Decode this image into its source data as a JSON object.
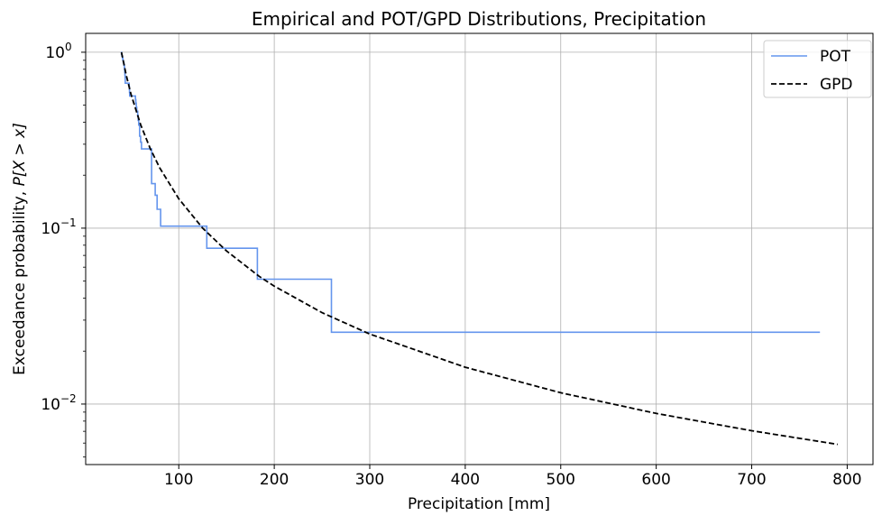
{
  "chart_data": {
    "type": "line",
    "title": "Empirical and POT/GPD Distributions, Precipitation",
    "xlabel": "Precipitation [mm]",
    "ylabel_prefix": "Exceedance probability, ",
    "ylabel_math": "P[X > x]",
    "xlim": [
      2.5,
      827
    ],
    "ylim": [
      0.00453,
      1.28
    ],
    "yscale": "log",
    "grid": true,
    "legend_position": "top-right",
    "xticks": [
      100,
      200,
      300,
      400,
      500,
      600,
      700,
      800
    ],
    "xtick_labels": [
      "100",
      "200",
      "300",
      "400",
      "500",
      "600",
      "700",
      "800"
    ],
    "yticks": [
      1,
      0.1,
      0.01
    ],
    "ytick_labels": [
      {
        "base": "10",
        "exp": "0"
      },
      {
        "base": "10",
        "exp": "−1"
      },
      {
        "base": "10",
        "exp": "−2"
      }
    ],
    "series": [
      {
        "name": "POT",
        "style": "steps-post",
        "color": "#6495ed",
        "x": [
          39.5,
          40,
          40.5,
          41,
          41.5,
          42,
          42.5,
          43,
          43.2,
          43.4,
          43.6,
          43.8,
          44,
          48,
          48.2,
          48.4,
          48.6,
          54.6,
          55,
          55.5,
          56,
          57,
          57.5,
          58,
          59,
          60,
          61,
          71.5,
          72.3,
          75.3,
          77.3,
          81,
          129.3,
          182.3,
          259.9,
          771.5
        ],
        "p": [
          1.0,
          0.974,
          0.949,
          0.923,
          0.897,
          0.872,
          0.846,
          0.821,
          0.795,
          0.769,
          0.744,
          0.718,
          0.667,
          0.641,
          0.615,
          0.59,
          0.564,
          0.538,
          0.513,
          0.487,
          0.462,
          0.436,
          0.41,
          0.385,
          0.333,
          0.308,
          0.282,
          0.179,
          0.179,
          0.154,
          0.128,
          0.1026,
          0.0769,
          0.0513,
          0.0256,
          0.0256
        ]
      },
      {
        "name": "GPD",
        "style": "dashed",
        "color": "#000000",
        "x": [
          40,
          45,
          50,
          60,
          70,
          80,
          100,
          125,
          150,
          184,
          200,
          250,
          300,
          400,
          500,
          600,
          700,
          790
        ],
        "p": [
          1.0,
          0.739,
          0.576,
          0.388,
          0.284,
          0.22,
          0.147,
          0.1,
          0.0742,
          0.0533,
          0.0468,
          0.0331,
          0.025,
          0.0162,
          0.0116,
          0.00885,
          0.00705,
          0.0059
        ]
      }
    ]
  }
}
